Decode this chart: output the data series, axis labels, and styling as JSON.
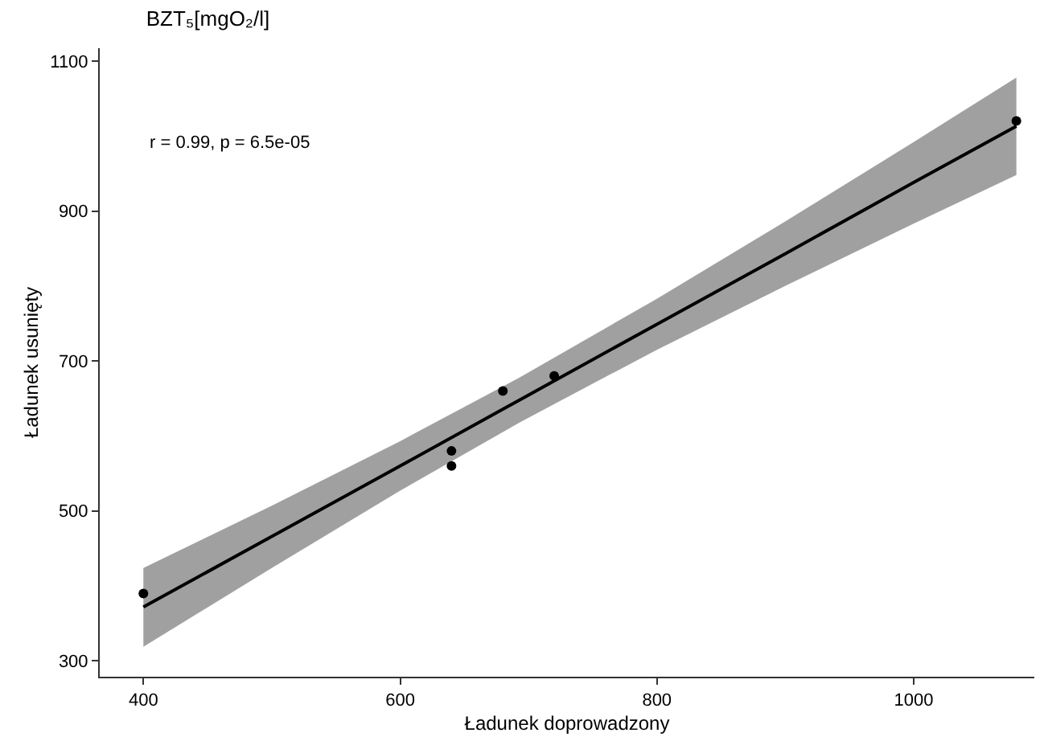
{
  "chart_data": {
    "type": "scatter",
    "title": "BZT₅[mgO₂/l]",
    "xlabel": "Ładunek doprowadzony",
    "ylabel": "Ładunek usunięty",
    "annotations": [
      "r = 0.99, p = 6.5e-05"
    ],
    "xlim": [
      366,
      1094
    ],
    "ylim": [
      279,
      1117
    ],
    "xticks": [
      400,
      600,
      800,
      1000
    ],
    "yticks": [
      300,
      500,
      700,
      900,
      1100
    ],
    "marker": "circle",
    "line_style": "solid",
    "series": [
      {
        "color": "#000000",
        "x": [
          400,
          640,
          640,
          680,
          720,
          1080
        ],
        "values": [
          390,
          580,
          560,
          660,
          680,
          1020
        ]
      },
      {
        "type": "line",
        "color": "#000000",
        "marker": "none",
        "x": [
          400,
          500,
          600,
          693,
          800,
          900,
          1000,
          1080
        ],
        "values": [
          372,
          466,
          560,
          648,
          749,
          843,
          938,
          1013
        ],
        "lower": [
          319,
          424,
          527,
          618,
          715,
          800,
          883,
          948
        ],
        "upper": [
          424,
          507,
          593,
          678,
          783,
          886,
          992,
          1078
        ]
      }
    ]
  }
}
